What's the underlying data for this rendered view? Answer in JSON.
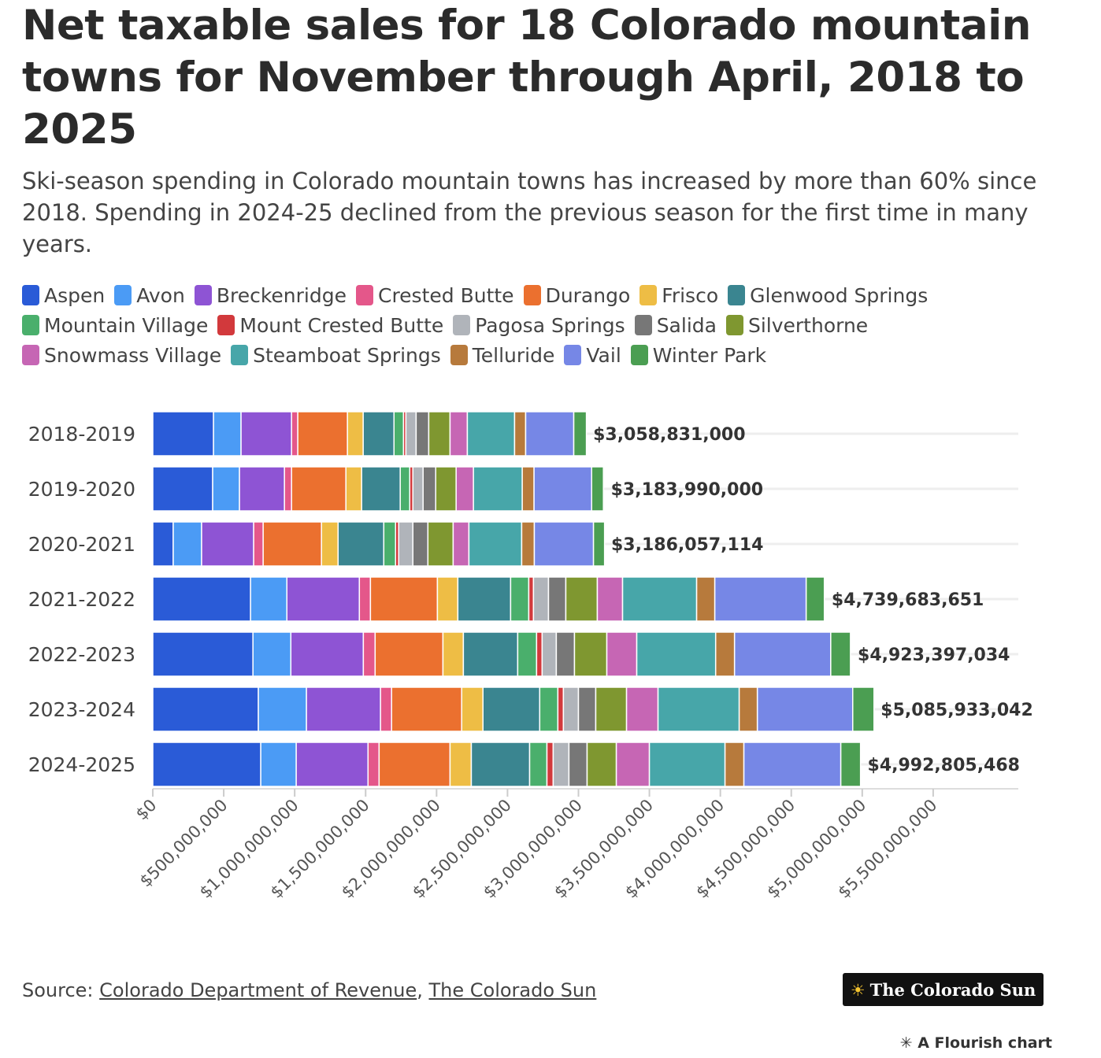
{
  "chart_data": {
    "type": "stacked-bar-horizontal",
    "title": "Net taxable sales for 18 Colorado mountain towns for November through April, 2018 to 2025",
    "subtitle": "Ski-season spending in Colorado mountain towns has increased by more than 60% since 2018. Spending in 2024-25 declined from the previous season for the first time in many years.",
    "categories": [
      "2018-2019",
      "2019-2020",
      "2020-2021",
      "2021-2022",
      "2022-2023",
      "2023-2024",
      "2024-2025"
    ],
    "series": [
      {
        "name": "Aspen",
        "color": "#2a5bd7",
        "values": [
          428000000,
          422000000,
          144000000,
          689000000,
          706000000,
          744000000,
          761000000
        ]
      },
      {
        "name": "Avon",
        "color": "#4b9bf5",
        "values": [
          194000000,
          189000000,
          200000000,
          256000000,
          267000000,
          339000000,
          250000000
        ]
      },
      {
        "name": "Breckenridge",
        "color": "#8e54d4",
        "values": [
          356000000,
          317000000,
          367000000,
          511000000,
          511000000,
          522000000,
          506000000
        ]
      },
      {
        "name": "Crested Butte",
        "color": "#e4578a",
        "values": [
          44000000,
          50000000,
          67000000,
          78000000,
          83000000,
          78000000,
          78000000
        ]
      },
      {
        "name": "Durango",
        "color": "#eb702f",
        "values": [
          350000000,
          383000000,
          411000000,
          472000000,
          478000000,
          494000000,
          500000000
        ]
      },
      {
        "name": "Frisco",
        "color": "#eebd45",
        "values": [
          111000000,
          111000000,
          117000000,
          144000000,
          144000000,
          150000000,
          150000000
        ]
      },
      {
        "name": "Glenwood Springs",
        "color": "#3a8590",
        "values": [
          217000000,
          272000000,
          322000000,
          372000000,
          383000000,
          400000000,
          411000000
        ]
      },
      {
        "name": "Mountain Village",
        "color": "#4aaf6c",
        "values": [
          67000000,
          67000000,
          83000000,
          128000000,
          133000000,
          128000000,
          122000000
        ]
      },
      {
        "name": "Mount Crested Butte",
        "color": "#d2393c",
        "values": [
          17000000,
          22000000,
          22000000,
          33000000,
          39000000,
          39000000,
          44000000
        ]
      },
      {
        "name": "Pagosa Springs",
        "color": "#b0b4ba",
        "values": [
          72000000,
          72000000,
          100000000,
          106000000,
          100000000,
          106000000,
          111000000
        ]
      },
      {
        "name": "Salida",
        "color": "#777777",
        "values": [
          89000000,
          89000000,
          106000000,
          122000000,
          128000000,
          122000000,
          128000000
        ]
      },
      {
        "name": "Silverthorne",
        "color": "#7f9730",
        "values": [
          150000000,
          144000000,
          178000000,
          222000000,
          228000000,
          217000000,
          206000000
        ]
      },
      {
        "name": "Snowmass Village",
        "color": "#c666b4",
        "values": [
          122000000,
          122000000,
          111000000,
          178000000,
          211000000,
          222000000,
          233000000
        ]
      },
      {
        "name": "Steamboat Springs",
        "color": "#47a6a9",
        "values": [
          333000000,
          344000000,
          372000000,
          522000000,
          556000000,
          572000000,
          533000000
        ]
      },
      {
        "name": "Telluride",
        "color": "#b77a3c",
        "values": [
          78000000,
          83000000,
          89000000,
          128000000,
          133000000,
          128000000,
          133000000
        ]
      },
      {
        "name": "Vail",
        "color": "#7687e6",
        "values": [
          339000000,
          406000000,
          417000000,
          644000000,
          678000000,
          672000000,
          683000000
        ]
      },
      {
        "name": "Winter Park",
        "color": "#4b9e52",
        "values": [
          89000000,
          83000000,
          78000000,
          128000000,
          139000000,
          150000000,
          139000000
        ]
      }
    ],
    "totals": [
      3058831000,
      3183990000,
      3186057114,
      4739683651,
      4923397034,
      5085933042,
      4992805468
    ],
    "total_labels": [
      "$3,058,831,000",
      "$3,183,990,000",
      "$3,186,057,114",
      "$4,739,683,651",
      "$4,923,397,034",
      "$5,085,933,042",
      "$4,992,805,468"
    ],
    "xlim": [
      0,
      6100000000
    ],
    "xticks": [
      {
        "value": 0,
        "label": "$0"
      },
      {
        "value": 500000000,
        "label": "$500,000,000"
      },
      {
        "value": 1000000000,
        "label": "$1,000,000,000"
      },
      {
        "value": 1500000000,
        "label": "$1,500,000,000"
      },
      {
        "value": 2000000000,
        "label": "$2,000,000,000"
      },
      {
        "value": 2500000000,
        "label": "$2,500,000,000"
      },
      {
        "value": 3000000000,
        "label": "$3,000,000,000"
      },
      {
        "value": 3500000000,
        "label": "$3,500,000,000"
      },
      {
        "value": 4000000000,
        "label": "$4,000,000,000"
      },
      {
        "value": 4500000000,
        "label": "$4,500,000,000"
      },
      {
        "value": 5000000000,
        "label": "$5,000,000,000"
      },
      {
        "value": 5500000000,
        "label": "$5,500,000,000"
      }
    ],
    "source_prefix": "Source:",
    "sources": [
      "Colorado Department of Revenue",
      "The Colorado Sun"
    ],
    "logo": "The Colorado Sun",
    "credit": "A Flourish chart"
  }
}
